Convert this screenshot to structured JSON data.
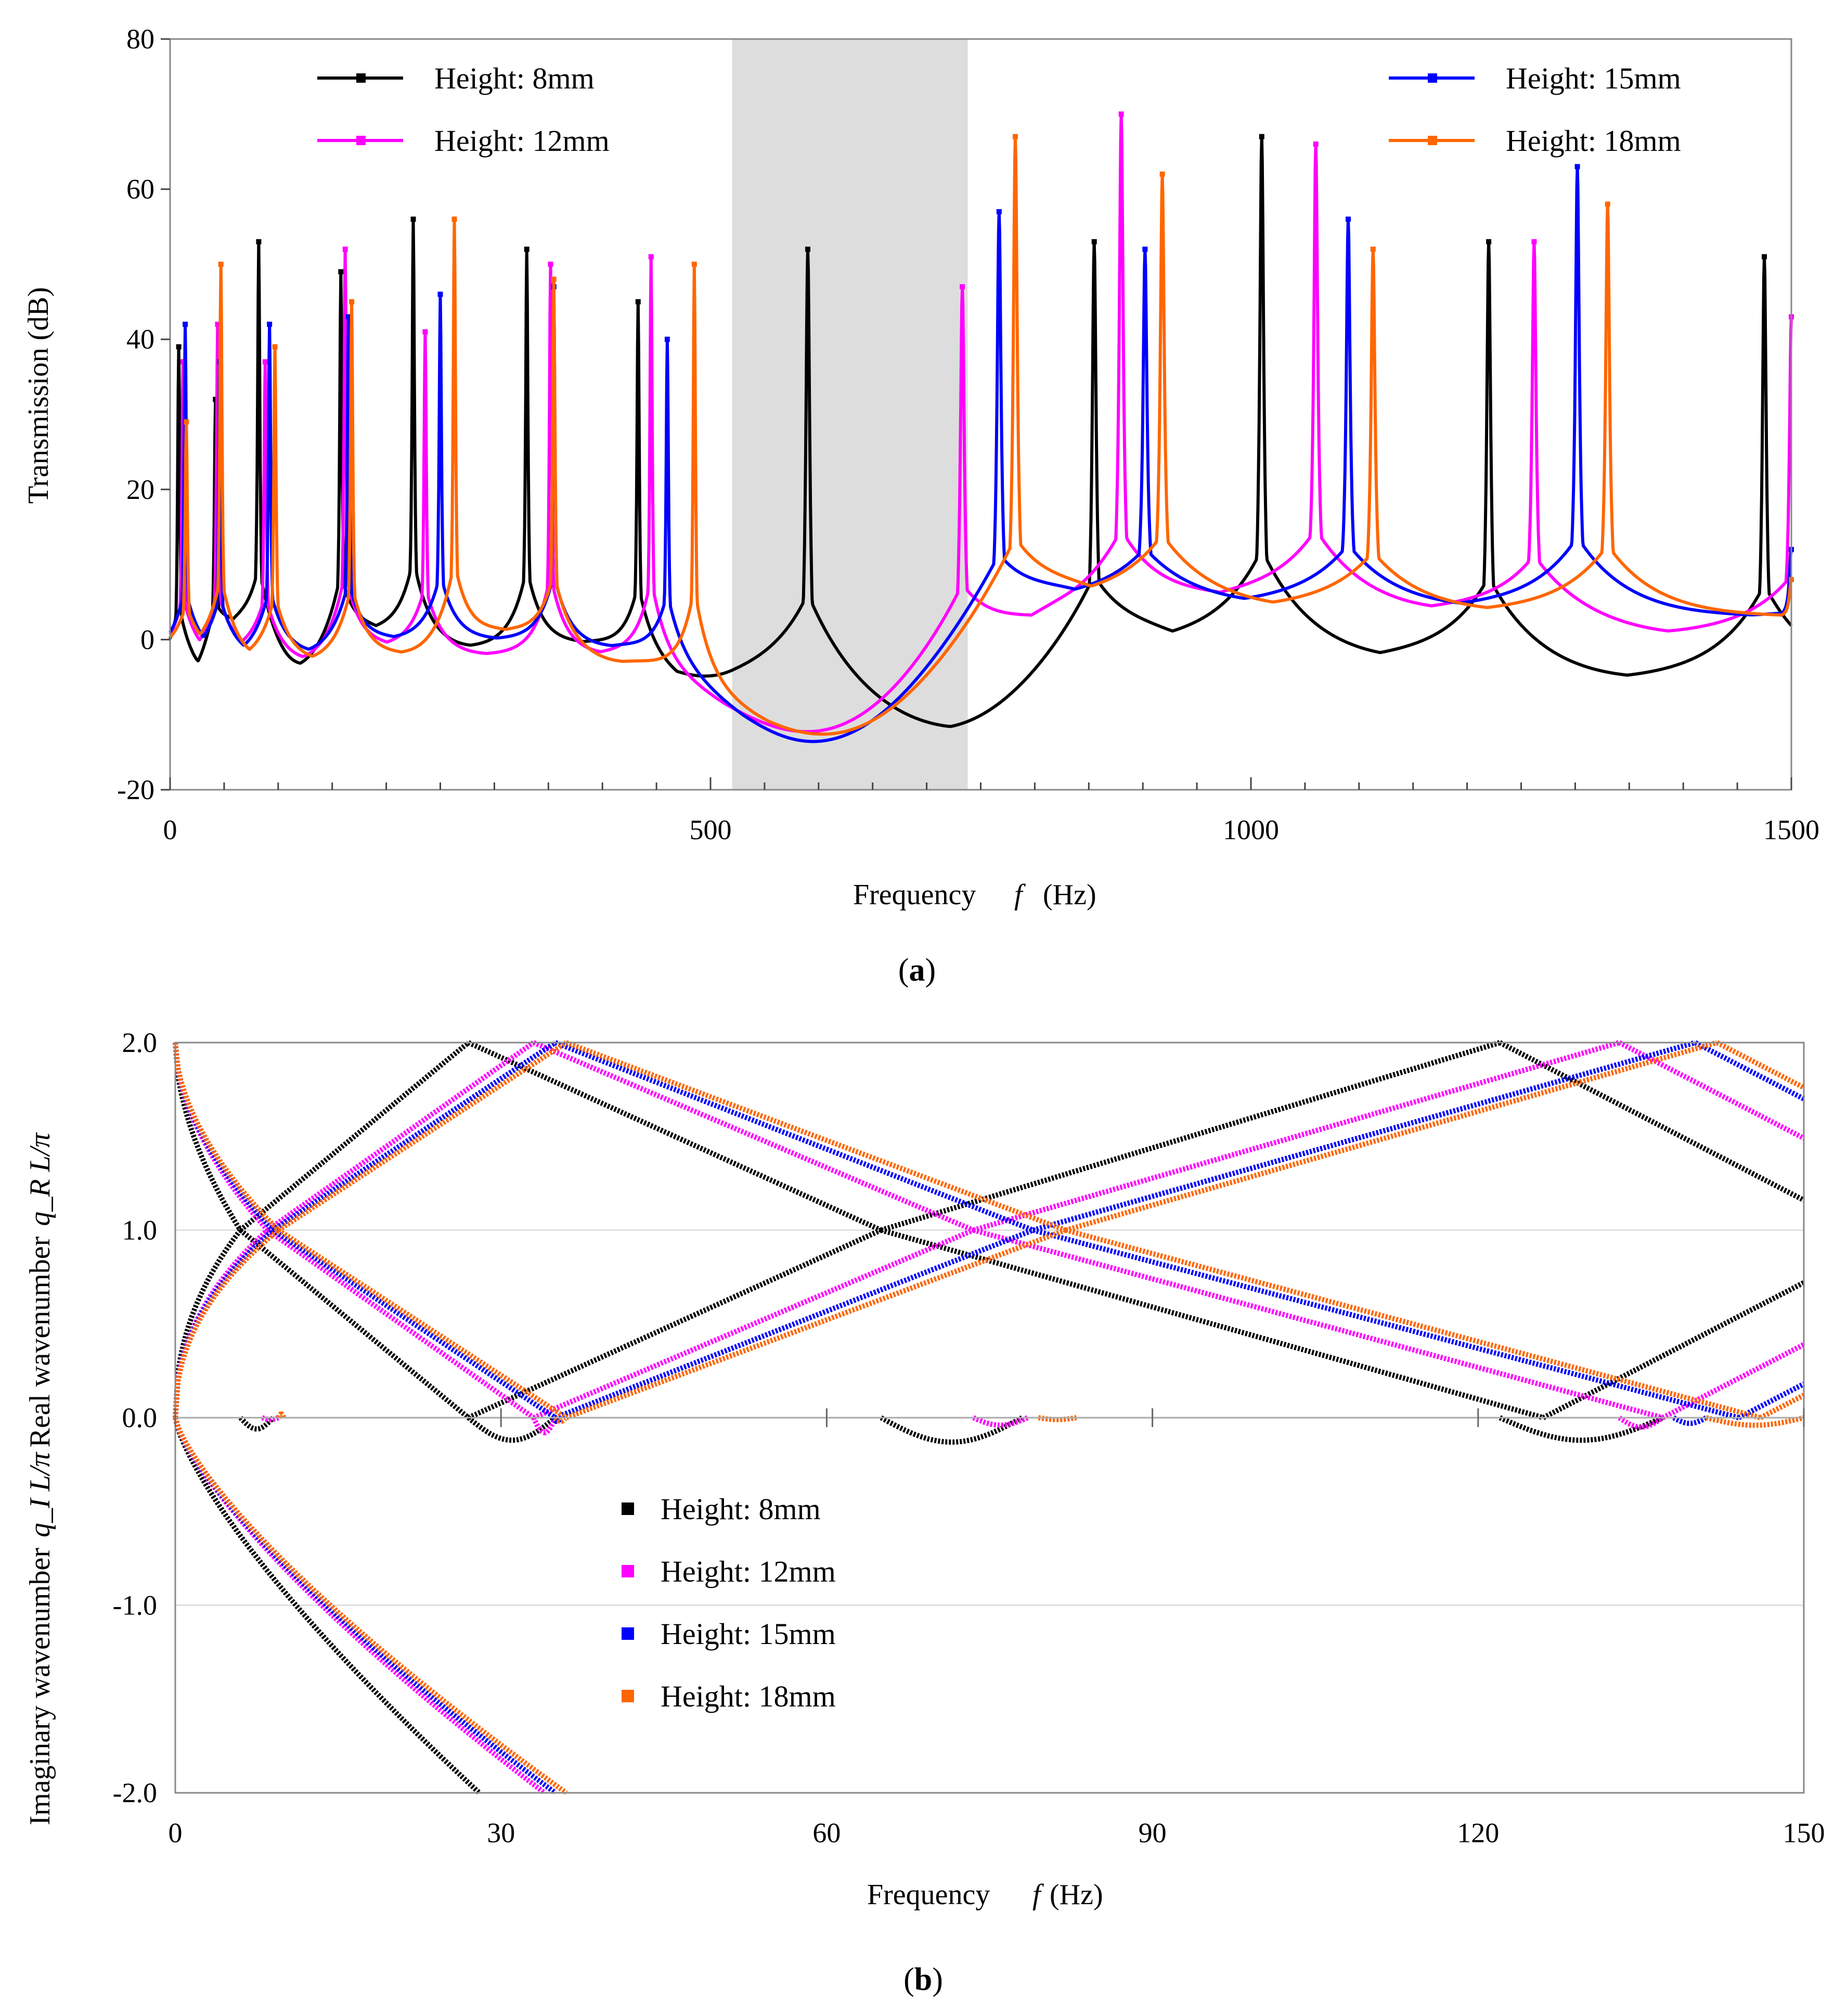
{
  "chart_data": [
    {
      "type": "line",
      "panel_label": "a",
      "xlabel": "Frequency",
      "xlabel_var": "f",
      "xlabel_unit": "(Hz)",
      "ylabel": "Transmission (dB)",
      "xlim": [
        0,
        1500
      ],
      "ylim": [
        -20,
        80
      ],
      "xticks": [
        "0",
        "500",
        "1000",
        "1500"
      ],
      "xtick_values": [
        0,
        500,
        1000,
        1500
      ],
      "yticks": [
        "-20",
        "0",
        "20",
        "40",
        "60",
        "80"
      ],
      "ytick_values": [
        -20,
        0,
        20,
        40,
        60,
        80
      ],
      "shaded_band": [
        520,
        738
      ],
      "legend": [
        "Height: 8mm",
        "Height: 12mm",
        "Height: 15mm",
        "Height: 18mm"
      ],
      "series": [
        {
          "name": "Height: 8mm",
          "color": "#000000",
          "peaks": [
            [
              8,
              39
            ],
            [
              42,
              32
            ],
            [
              82,
              53
            ],
            [
              158,
              49
            ],
            [
              225,
              56
            ],
            [
              330,
              52
            ],
            [
              433,
              45
            ],
            [
              590,
              52
            ],
            [
              855,
              53
            ],
            [
              1010,
              67
            ],
            [
              1220,
              53
            ],
            [
              1475,
              51
            ]
          ],
          "troughs": [
            [
              22,
              -6
            ],
            [
              60,
              1
            ],
            [
              115,
              -4
            ],
            [
              190,
              1
            ],
            [
              275,
              -1
            ],
            [
              380,
              -0.5
            ],
            [
              520,
              -7
            ],
            [
              715,
              -12.5
            ],
            [
              920,
              -1
            ],
            [
              1120,
              -3
            ],
            [
              1340,
              -5.5
            ]
          ]
        },
        {
          "name": "Height: 12mm",
          "color": "#ff00ff",
          "peaks": [
            [
              12,
              37
            ],
            [
              44,
              42
            ],
            [
              88,
              37
            ],
            [
              162,
              52
            ],
            [
              236,
              41
            ],
            [
              352,
              50
            ],
            [
              445,
              51
            ],
            [
              733,
              47
            ],
            [
              880,
              70
            ],
            [
              1060,
              66
            ],
            [
              1262,
              53
            ],
            [
              1500,
              43
            ]
          ],
          "troughs": [
            [
              28,
              -3
            ],
            [
              65,
              -2
            ],
            [
              118,
              -3
            ],
            [
              200,
              -1
            ],
            [
              290,
              -2
            ],
            [
              400,
              -2
            ],
            [
              600,
              -13
            ],
            [
              830,
              2
            ],
            [
              990,
              5
            ],
            [
              1160,
              3.5
            ],
            [
              1400,
              0.5
            ]
          ]
        },
        {
          "name": "Height: 15mm",
          "color": "#0000ff",
          "peaks": [
            [
              14,
              42
            ],
            [
              46,
              37
            ],
            [
              92,
              42
            ],
            [
              165,
              43
            ],
            [
              250,
              46
            ],
            [
              355,
              47
            ],
            [
              460,
              40
            ],
            [
              767,
              57
            ],
            [
              902,
              52
            ],
            [
              1090,
              56
            ],
            [
              1302,
              63
            ],
            [
              1500,
              12
            ]
          ],
          "troughs": [
            [
              30,
              -2.5
            ],
            [
              68,
              -2.5
            ],
            [
              120,
              -2
            ],
            [
              210,
              0
            ],
            [
              300,
              0
            ],
            [
              410,
              -1
            ],
            [
              600,
              -14
            ],
            [
              840,
              5
            ],
            [
              1010,
              4.5
            ],
            [
              1180,
              4
            ],
            [
              1420,
              3
            ]
          ]
        },
        {
          "name": "Height: 18mm",
          "color": "#ff6600",
          "peaks": [
            [
              15,
              29
            ],
            [
              47,
              50
            ],
            [
              97,
              39
            ],
            [
              168,
              45
            ],
            [
              263,
              56
            ],
            [
              355,
              48
            ],
            [
              485,
              50
            ],
            [
              782,
              67
            ],
            [
              918,
              62
            ],
            [
              1113,
              52
            ],
            [
              1330,
              58
            ],
            [
              1500,
              8
            ]
          ],
          "troughs": [
            [
              32,
              -2
            ],
            [
              72,
              -3
            ],
            [
              125,
              -3
            ],
            [
              220,
              -2
            ],
            [
              310,
              1
            ],
            [
              420,
              -3
            ],
            [
              610,
              -13
            ],
            [
              850,
              5
            ],
            [
              1030,
              4
            ],
            [
              1210,
              3.5
            ],
            [
              1440,
              3
            ]
          ]
        }
      ]
    },
    {
      "type": "scatter",
      "panel_label": "b",
      "xlabel": "Frequency",
      "xlabel_var": "f",
      "xlabel_unit": "(Hz)",
      "ylabel_top": "Real wavenumber",
      "ylabel_top_var": "q_R L/π",
      "ylabel_bottom": "Imaginary wavenumber",
      "ylabel_bottom_var": "q_I L/π",
      "xlim": [
        0,
        150
      ],
      "ylim": [
        -2,
        2
      ],
      "xticks": [
        "0",
        "30",
        "60",
        "90",
        "120",
        "150"
      ],
      "xtick_values": [
        0,
        30,
        60,
        90,
        120,
        150
      ],
      "yticks": [
        "-2.0",
        "-1.0",
        "0.0",
        "1.0",
        "2.0"
      ],
      "ytick_values": [
        -2,
        -1,
        0,
        1,
        2
      ],
      "legend": [
        "Height: 8mm",
        "Height: 12mm",
        "Height: 15mm",
        "Height: 18mm"
      ],
      "series": [
        {
          "name": "Height: 8mm",
          "color": "#000000",
          "bragg": [
            6,
            27,
            65,
            122
          ],
          "local": [
            9,
            78
          ],
          "ridge": [
            0,
            0
          ],
          "gaps": [
            [
              6,
              9,
              -0.06
            ],
            [
              27,
              35,
              -0.12
            ],
            [
              65,
              78,
              -0.13
            ],
            [
              122,
              137,
              -0.12
            ]
          ],
          "imag_end": 28
        },
        {
          "name": "Height: 12mm",
          "color": "#ff00ff",
          "bragg": [
            8.5,
            33,
            73.5,
            133
          ],
          "local": [
            9.5,
            79
          ],
          "ridge": [
            0,
            0
          ],
          "gaps": [
            [
              8,
              9.5,
              -0.01
            ],
            [
              33,
              35,
              -0.08
            ],
            [
              73.5,
              78.5,
              -0.04
            ],
            [
              133,
              137,
              -0.05
            ]
          ],
          "imag_end": 34
        },
        {
          "name": "Height: 15mm",
          "color": "#0000ff",
          "bragg": [
            9,
            35,
            79,
            140
          ],
          "local": [
            9.3,
            80
          ],
          "ridge": [
            0,
            0
          ],
          "gaps": [
            [
              34.8,
              35.5,
              -0.02
            ],
            [
              138,
              141,
              -0.03
            ]
          ],
          "imag_end": 35
        },
        {
          "name": "Height: 18mm",
          "color": "#ff6600",
          "bragg": [
            9.5,
            36,
            82,
            142
          ],
          "local": [
            9.5,
            79.5
          ],
          "ridge": [
            0,
            0
          ],
          "gaps": [
            [
              9.5,
              10,
              0.02
            ],
            [
              35,
              36,
              -0.02
            ],
            [
              79.5,
              83,
              -0.01
            ],
            [
              141,
              150,
              -0.04
            ]
          ],
          "imag_end": 36
        }
      ]
    }
  ],
  "captions": {
    "a": "a",
    "b": "b"
  }
}
